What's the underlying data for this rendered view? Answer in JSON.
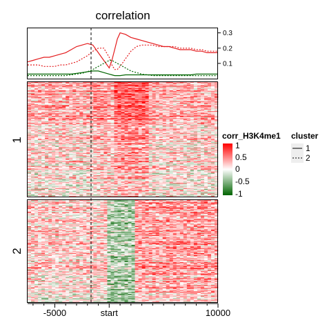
{
  "chart_data": {
    "type": "heatmap",
    "title": "correlation",
    "xaxis": {
      "ticks": [
        {
          "value": -5000,
          "label": "-5000"
        },
        {
          "value": 0,
          "label": "start"
        },
        {
          "value": 10000,
          "label": "10000"
        }
      ],
      "range": [
        -7500,
        10000
      ],
      "minor_tick_step": 1000
    },
    "row_groups": [
      {
        "label": "1",
        "rows_visible": 150
      },
      {
        "label": "2",
        "rows_visible": 125
      }
    ],
    "colorbar": {
      "title": "corr_H3K4me1",
      "ticks": [
        {
          "value": 1,
          "label": "1"
        },
        {
          "value": 0.5,
          "label": "0.5"
        },
        {
          "value": 0,
          "label": "0"
        },
        {
          "value": -0.5,
          "label": "-0.5"
        },
        {
          "value": -1,
          "label": "-1"
        }
      ],
      "colors": {
        "high": "#ff0000",
        "mid": "#ffffff",
        "low": "#006400"
      }
    },
    "cluster_legend": {
      "title": "cluster",
      "entries": [
        {
          "label": "1",
          "linetype": "solid"
        },
        {
          "label": "2",
          "linetype": "dotted"
        }
      ]
    },
    "profile": {
      "yticks": [
        {
          "value": 0.1,
          "label": "0.1"
        },
        {
          "value": 0.2,
          "label": "0.2"
        },
        {
          "value": 0.3,
          "label": "0.3"
        }
      ],
      "ylim": [
        0,
        0.33
      ],
      "x": [
        -7500,
        -7000,
        -6500,
        -6000,
        -5500,
        -5000,
        -4500,
        -4000,
        -3500,
        -3000,
        -2500,
        -2000,
        -1500,
        -1000,
        -500,
        0,
        250,
        500,
        750,
        1000,
        1500,
        2000,
        2500,
        3000,
        3500,
        4000,
        4500,
        5000,
        5500,
        6000,
        6500,
        7000,
        7500,
        8000,
        8500,
        9000,
        9500,
        10000
      ],
      "series": [
        {
          "name": "1",
          "linetype": "solid",
          "color": "#e41a1c",
          "values": [
            0.11,
            0.12,
            0.13,
            0.14,
            0.14,
            0.15,
            0.16,
            0.17,
            0.19,
            0.21,
            0.22,
            0.23,
            0.22,
            0.17,
            0.12,
            0.07,
            0.12,
            0.19,
            0.26,
            0.3,
            0.29,
            0.27,
            0.26,
            0.25,
            0.24,
            0.23,
            0.22,
            0.21,
            0.21,
            0.2,
            0.19,
            0.19,
            0.19,
            0.18,
            0.18,
            0.17,
            0.17,
            0.17
          ]
        },
        {
          "name": "2",
          "linetype": "dotted",
          "color": "#e41a1c",
          "values": [
            0.09,
            0.09,
            0.09,
            0.08,
            0.08,
            0.08,
            0.09,
            0.09,
            0.1,
            0.11,
            0.13,
            0.15,
            0.18,
            0.2,
            0.2,
            0.14,
            0.09,
            0.06,
            0.06,
            0.08,
            0.13,
            0.18,
            0.21,
            0.22,
            0.22,
            0.22,
            0.21,
            0.21,
            0.21,
            0.21,
            0.2,
            0.2,
            0.2,
            0.19,
            0.19,
            0.18,
            0.18,
            0.18
          ]
        },
        {
          "name": "1",
          "linetype": "solid",
          "color": "#006400",
          "values": [
            0.03,
            0.03,
            0.03,
            0.03,
            0.03,
            0.03,
            0.03,
            0.03,
            0.03,
            0.035,
            0.04,
            0.045,
            0.05,
            0.05,
            0.04,
            0.03,
            0.025,
            0.02,
            0.02,
            0.02,
            0.025,
            0.025,
            0.025,
            0.025,
            0.025,
            0.025,
            0.025,
            0.025,
            0.025,
            0.025,
            0.025,
            0.025,
            0.025,
            0.03,
            0.03,
            0.03,
            0.03,
            0.03
          ]
        },
        {
          "name": "2",
          "linetype": "dotted",
          "color": "#006400",
          "values": [
            0.02,
            0.02,
            0.02,
            0.02,
            0.02,
            0.02,
            0.02,
            0.02,
            0.025,
            0.03,
            0.035,
            0.045,
            0.06,
            0.08,
            0.1,
            0.12,
            0.12,
            0.11,
            0.1,
            0.09,
            0.07,
            0.05,
            0.04,
            0.03,
            0.025,
            0.02,
            0.02,
            0.02,
            0.02,
            0.02,
            0.02,
            0.02,
            0.02,
            0.02,
            0.02,
            0.02,
            0.02,
            0.02
          ]
        }
      ]
    }
  }
}
